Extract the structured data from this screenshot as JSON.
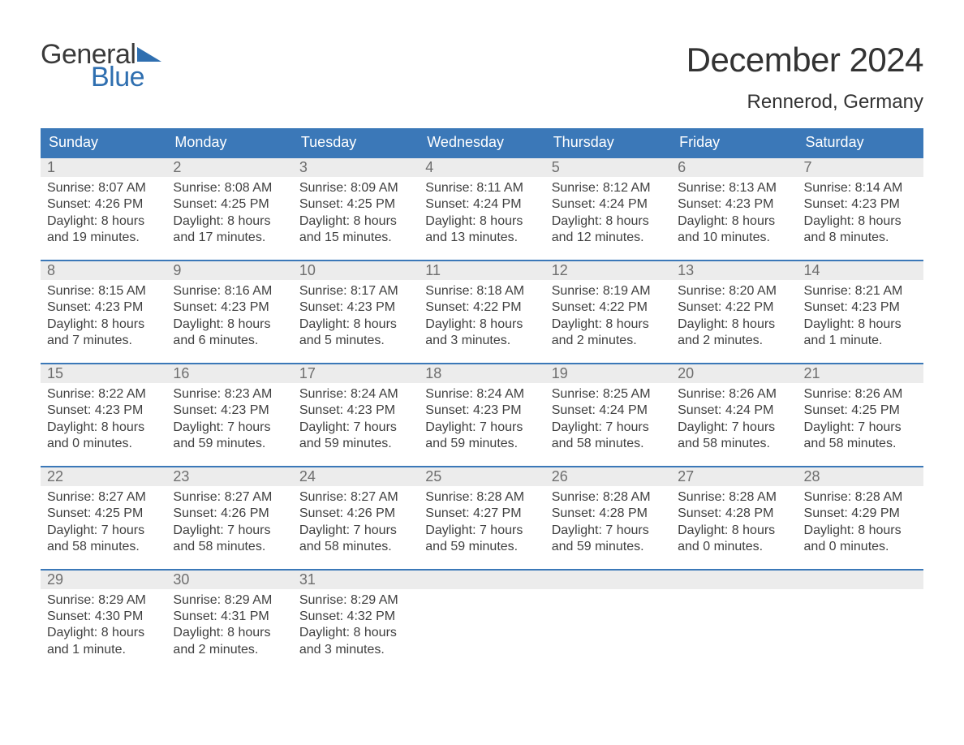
{
  "brand": {
    "part1": "General",
    "part2": "Blue"
  },
  "title": "December 2024",
  "location": "Rennerod, Germany",
  "colors": {
    "header_bg": "#3b78b8",
    "header_text": "#ffffff",
    "daynum_bg": "#ececec",
    "daynum_text": "#6e6e6e",
    "body_text": "#404040",
    "week_border": "#3b78b8",
    "logo_blue": "#2f6fb0",
    "page_bg": "#ffffff"
  },
  "layout": {
    "columns": 7,
    "rows": 5,
    "header_fontsize": 18,
    "daynum_fontsize": 18,
    "cell_fontsize": 16,
    "title_fontsize": 42,
    "location_fontsize": 24
  },
  "day_headers": [
    "Sunday",
    "Monday",
    "Tuesday",
    "Wednesday",
    "Thursday",
    "Friday",
    "Saturday"
  ],
  "weeks": [
    [
      {
        "num": "1",
        "sunrise": "Sunrise: 8:07 AM",
        "sunset": "Sunset: 4:26 PM",
        "d1": "Daylight: 8 hours",
        "d2": "and 19 minutes."
      },
      {
        "num": "2",
        "sunrise": "Sunrise: 8:08 AM",
        "sunset": "Sunset: 4:25 PM",
        "d1": "Daylight: 8 hours",
        "d2": "and 17 minutes."
      },
      {
        "num": "3",
        "sunrise": "Sunrise: 8:09 AM",
        "sunset": "Sunset: 4:25 PM",
        "d1": "Daylight: 8 hours",
        "d2": "and 15 minutes."
      },
      {
        "num": "4",
        "sunrise": "Sunrise: 8:11 AM",
        "sunset": "Sunset: 4:24 PM",
        "d1": "Daylight: 8 hours",
        "d2": "and 13 minutes."
      },
      {
        "num": "5",
        "sunrise": "Sunrise: 8:12 AM",
        "sunset": "Sunset: 4:24 PM",
        "d1": "Daylight: 8 hours",
        "d2": "and 12 minutes."
      },
      {
        "num": "6",
        "sunrise": "Sunrise: 8:13 AM",
        "sunset": "Sunset: 4:23 PM",
        "d1": "Daylight: 8 hours",
        "d2": "and 10 minutes."
      },
      {
        "num": "7",
        "sunrise": "Sunrise: 8:14 AM",
        "sunset": "Sunset: 4:23 PM",
        "d1": "Daylight: 8 hours",
        "d2": "and 8 minutes."
      }
    ],
    [
      {
        "num": "8",
        "sunrise": "Sunrise: 8:15 AM",
        "sunset": "Sunset: 4:23 PM",
        "d1": "Daylight: 8 hours",
        "d2": "and 7 minutes."
      },
      {
        "num": "9",
        "sunrise": "Sunrise: 8:16 AM",
        "sunset": "Sunset: 4:23 PM",
        "d1": "Daylight: 8 hours",
        "d2": "and 6 minutes."
      },
      {
        "num": "10",
        "sunrise": "Sunrise: 8:17 AM",
        "sunset": "Sunset: 4:23 PM",
        "d1": "Daylight: 8 hours",
        "d2": "and 5 minutes."
      },
      {
        "num": "11",
        "sunrise": "Sunrise: 8:18 AM",
        "sunset": "Sunset: 4:22 PM",
        "d1": "Daylight: 8 hours",
        "d2": "and 3 minutes."
      },
      {
        "num": "12",
        "sunrise": "Sunrise: 8:19 AM",
        "sunset": "Sunset: 4:22 PM",
        "d1": "Daylight: 8 hours",
        "d2": "and 2 minutes."
      },
      {
        "num": "13",
        "sunrise": "Sunrise: 8:20 AM",
        "sunset": "Sunset: 4:22 PM",
        "d1": "Daylight: 8 hours",
        "d2": "and 2 minutes."
      },
      {
        "num": "14",
        "sunrise": "Sunrise: 8:21 AM",
        "sunset": "Sunset: 4:23 PM",
        "d1": "Daylight: 8 hours",
        "d2": "and 1 minute."
      }
    ],
    [
      {
        "num": "15",
        "sunrise": "Sunrise: 8:22 AM",
        "sunset": "Sunset: 4:23 PM",
        "d1": "Daylight: 8 hours",
        "d2": "and 0 minutes."
      },
      {
        "num": "16",
        "sunrise": "Sunrise: 8:23 AM",
        "sunset": "Sunset: 4:23 PM",
        "d1": "Daylight: 7 hours",
        "d2": "and 59 minutes."
      },
      {
        "num": "17",
        "sunrise": "Sunrise: 8:24 AM",
        "sunset": "Sunset: 4:23 PM",
        "d1": "Daylight: 7 hours",
        "d2": "and 59 minutes."
      },
      {
        "num": "18",
        "sunrise": "Sunrise: 8:24 AM",
        "sunset": "Sunset: 4:23 PM",
        "d1": "Daylight: 7 hours",
        "d2": "and 59 minutes."
      },
      {
        "num": "19",
        "sunrise": "Sunrise: 8:25 AM",
        "sunset": "Sunset: 4:24 PM",
        "d1": "Daylight: 7 hours",
        "d2": "and 58 minutes."
      },
      {
        "num": "20",
        "sunrise": "Sunrise: 8:26 AM",
        "sunset": "Sunset: 4:24 PM",
        "d1": "Daylight: 7 hours",
        "d2": "and 58 minutes."
      },
      {
        "num": "21",
        "sunrise": "Sunrise: 8:26 AM",
        "sunset": "Sunset: 4:25 PM",
        "d1": "Daylight: 7 hours",
        "d2": "and 58 minutes."
      }
    ],
    [
      {
        "num": "22",
        "sunrise": "Sunrise: 8:27 AM",
        "sunset": "Sunset: 4:25 PM",
        "d1": "Daylight: 7 hours",
        "d2": "and 58 minutes."
      },
      {
        "num": "23",
        "sunrise": "Sunrise: 8:27 AM",
        "sunset": "Sunset: 4:26 PM",
        "d1": "Daylight: 7 hours",
        "d2": "and 58 minutes."
      },
      {
        "num": "24",
        "sunrise": "Sunrise: 8:27 AM",
        "sunset": "Sunset: 4:26 PM",
        "d1": "Daylight: 7 hours",
        "d2": "and 58 minutes."
      },
      {
        "num": "25",
        "sunrise": "Sunrise: 8:28 AM",
        "sunset": "Sunset: 4:27 PM",
        "d1": "Daylight: 7 hours",
        "d2": "and 59 minutes."
      },
      {
        "num": "26",
        "sunrise": "Sunrise: 8:28 AM",
        "sunset": "Sunset: 4:28 PM",
        "d1": "Daylight: 7 hours",
        "d2": "and 59 minutes."
      },
      {
        "num": "27",
        "sunrise": "Sunrise: 8:28 AM",
        "sunset": "Sunset: 4:28 PM",
        "d1": "Daylight: 8 hours",
        "d2": "and 0 minutes."
      },
      {
        "num": "28",
        "sunrise": "Sunrise: 8:28 AM",
        "sunset": "Sunset: 4:29 PM",
        "d1": "Daylight: 8 hours",
        "d2": "and 0 minutes."
      }
    ],
    [
      {
        "num": "29",
        "sunrise": "Sunrise: 8:29 AM",
        "sunset": "Sunset: 4:30 PM",
        "d1": "Daylight: 8 hours",
        "d2": "and 1 minute."
      },
      {
        "num": "30",
        "sunrise": "Sunrise: 8:29 AM",
        "sunset": "Sunset: 4:31 PM",
        "d1": "Daylight: 8 hours",
        "d2": "and 2 minutes."
      },
      {
        "num": "31",
        "sunrise": "Sunrise: 8:29 AM",
        "sunset": "Sunset: 4:32 PM",
        "d1": "Daylight: 8 hours",
        "d2": "and 3 minutes."
      },
      null,
      null,
      null,
      null
    ]
  ]
}
